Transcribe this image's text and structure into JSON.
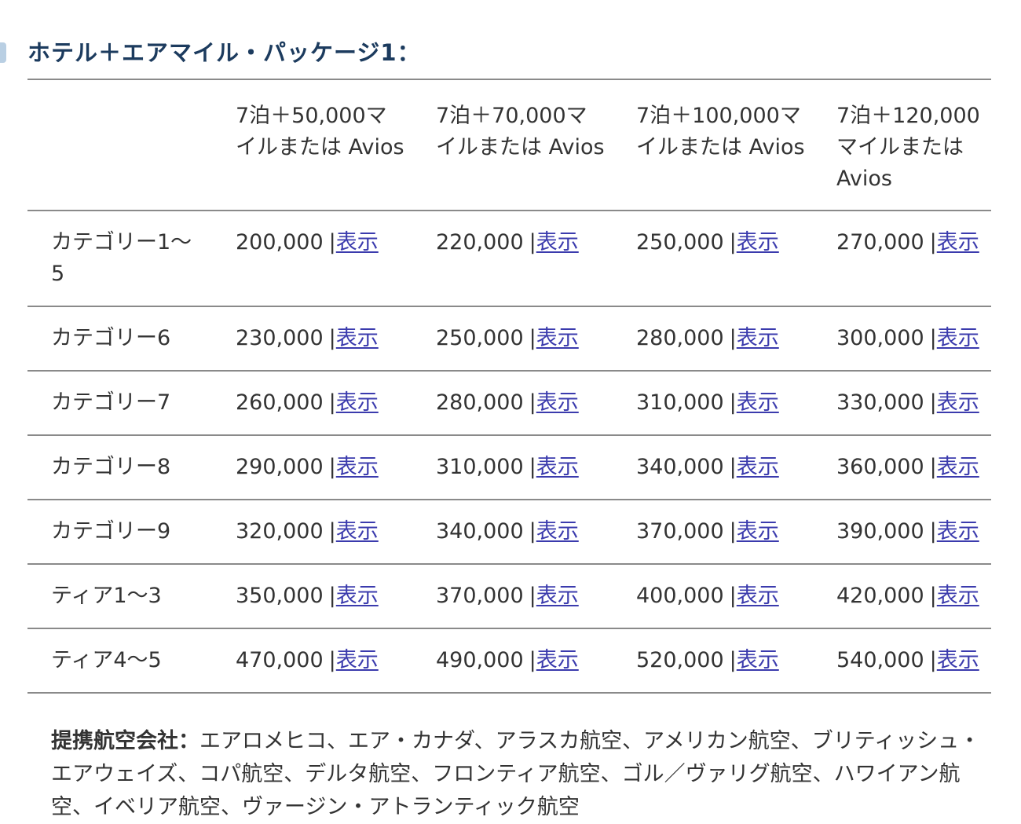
{
  "title": "ホテル＋エアマイル・パッケージ1：",
  "colors": {
    "title_text": "#1c3b5e",
    "body_text": "#333333",
    "link": "#3b3bad",
    "divider_line": "#8a8a8a"
  },
  "table": {
    "separator": "|",
    "link_label": "表示",
    "col_headers": [
      "7泊＋50,000マイルまたは Avios",
      "7泊＋70,000マイルまたは Avios",
      "7泊＋100,000マイルまたは Avios",
      "7泊＋120,000マイルまたは Avios"
    ],
    "rows": [
      {
        "label": "カテゴリー1～5",
        "values": [
          "200,000",
          "220,000",
          "250,000",
          "270,000"
        ]
      },
      {
        "label": "カテゴリー6",
        "values": [
          "230,000",
          "250,000",
          "280,000",
          "300,000"
        ]
      },
      {
        "label": "カテゴリー7",
        "values": [
          "260,000",
          "280,000",
          "310,000",
          "330,000"
        ]
      },
      {
        "label": "カテゴリー8",
        "values": [
          "290,000",
          "310,000",
          "340,000",
          "360,000"
        ]
      },
      {
        "label": "カテゴリー9",
        "values": [
          "320,000",
          "340,000",
          "370,000",
          "390,000"
        ]
      },
      {
        "label": "ティア1～3",
        "values": [
          "350,000",
          "370,000",
          "400,000",
          "420,000"
        ]
      },
      {
        "label": "ティア4～5",
        "values": [
          "470,000",
          "490,000",
          "520,000",
          "540,000"
        ]
      }
    ]
  },
  "footer": {
    "label": "提携航空会社：",
    "airlines": "エアロメヒコ、エア・カナダ、アラスカ航空、アメリカン航空、ブリティッシュ・エアウェイズ、コパ航空、デルタ航空、フロンティア航空、ゴル／ヴァリグ航空、ハワイアン航空、イベリア航空、ヴァージン・アトランティック航空"
  }
}
